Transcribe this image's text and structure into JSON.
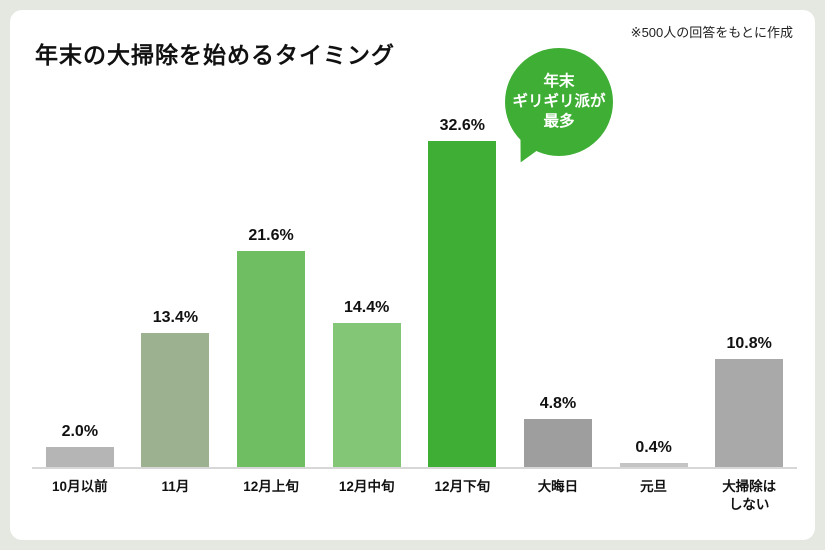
{
  "page": {
    "title": "年末の大掃除を始めるタイミング",
    "note": "※500人の回答をもとに作成"
  },
  "callout": {
    "lines": [
      "年末",
      "ギリギリ派が",
      "最多"
    ],
    "color": "#3fae35"
  },
  "chart_data": {
    "type": "bar",
    "title": "年末の大掃除を始めるタイミング",
    "subtitle": "※500人の回答をもとに作成",
    "categories": [
      "10月以前",
      "11月",
      "12月上旬",
      "12月中旬",
      "12月下旬",
      "大晦日",
      "元旦",
      "大掃除は\nしない"
    ],
    "values": [
      2.0,
      13.4,
      21.6,
      14.4,
      32.6,
      4.8,
      0.4,
      10.8
    ],
    "labels": [
      "2.0%",
      "13.4%",
      "21.6%",
      "14.4%",
      "32.6%",
      "4.8%",
      "0.4%",
      "10.8%"
    ],
    "bar_colors": [
      "#b5b5b5",
      "#9cb18f",
      "#6fbf62",
      "#83c675",
      "#3fae35",
      "#9e9e9e",
      "#c4c4c4",
      "#a9a9a9"
    ],
    "unit": "%",
    "ylim": [
      0,
      35
    ],
    "grid": false,
    "legend": "none",
    "annotation": "年末ギリギリ派が最多"
  }
}
